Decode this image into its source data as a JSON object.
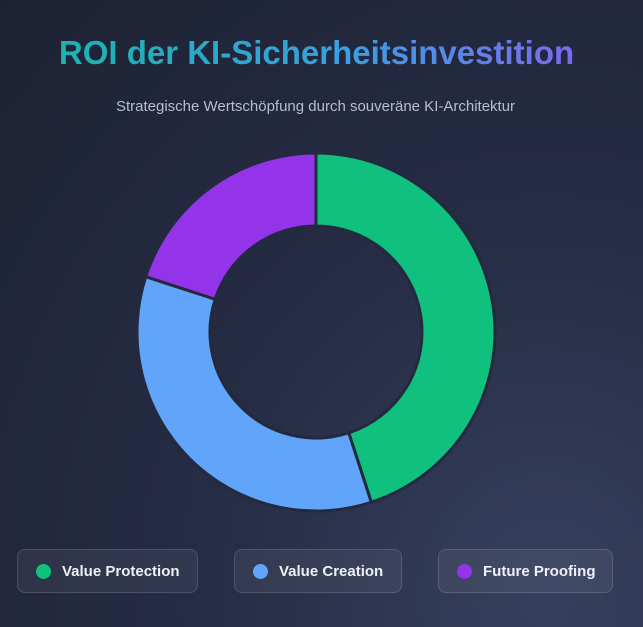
{
  "chart_data": {
    "type": "doughnut",
    "title": "ROI der KI-Sicherheitsinvestition",
    "subtitle": "Strategische Wertschöpfung durch souveräne KI-Architektur",
    "categories": [
      "Value Protection",
      "Value Creation",
      "Future Proofing"
    ],
    "values": [
      45,
      35,
      20
    ],
    "colors": [
      "#10c07f",
      "#60a5fa",
      "#9333ea"
    ],
    "legend": "bottom"
  }
}
